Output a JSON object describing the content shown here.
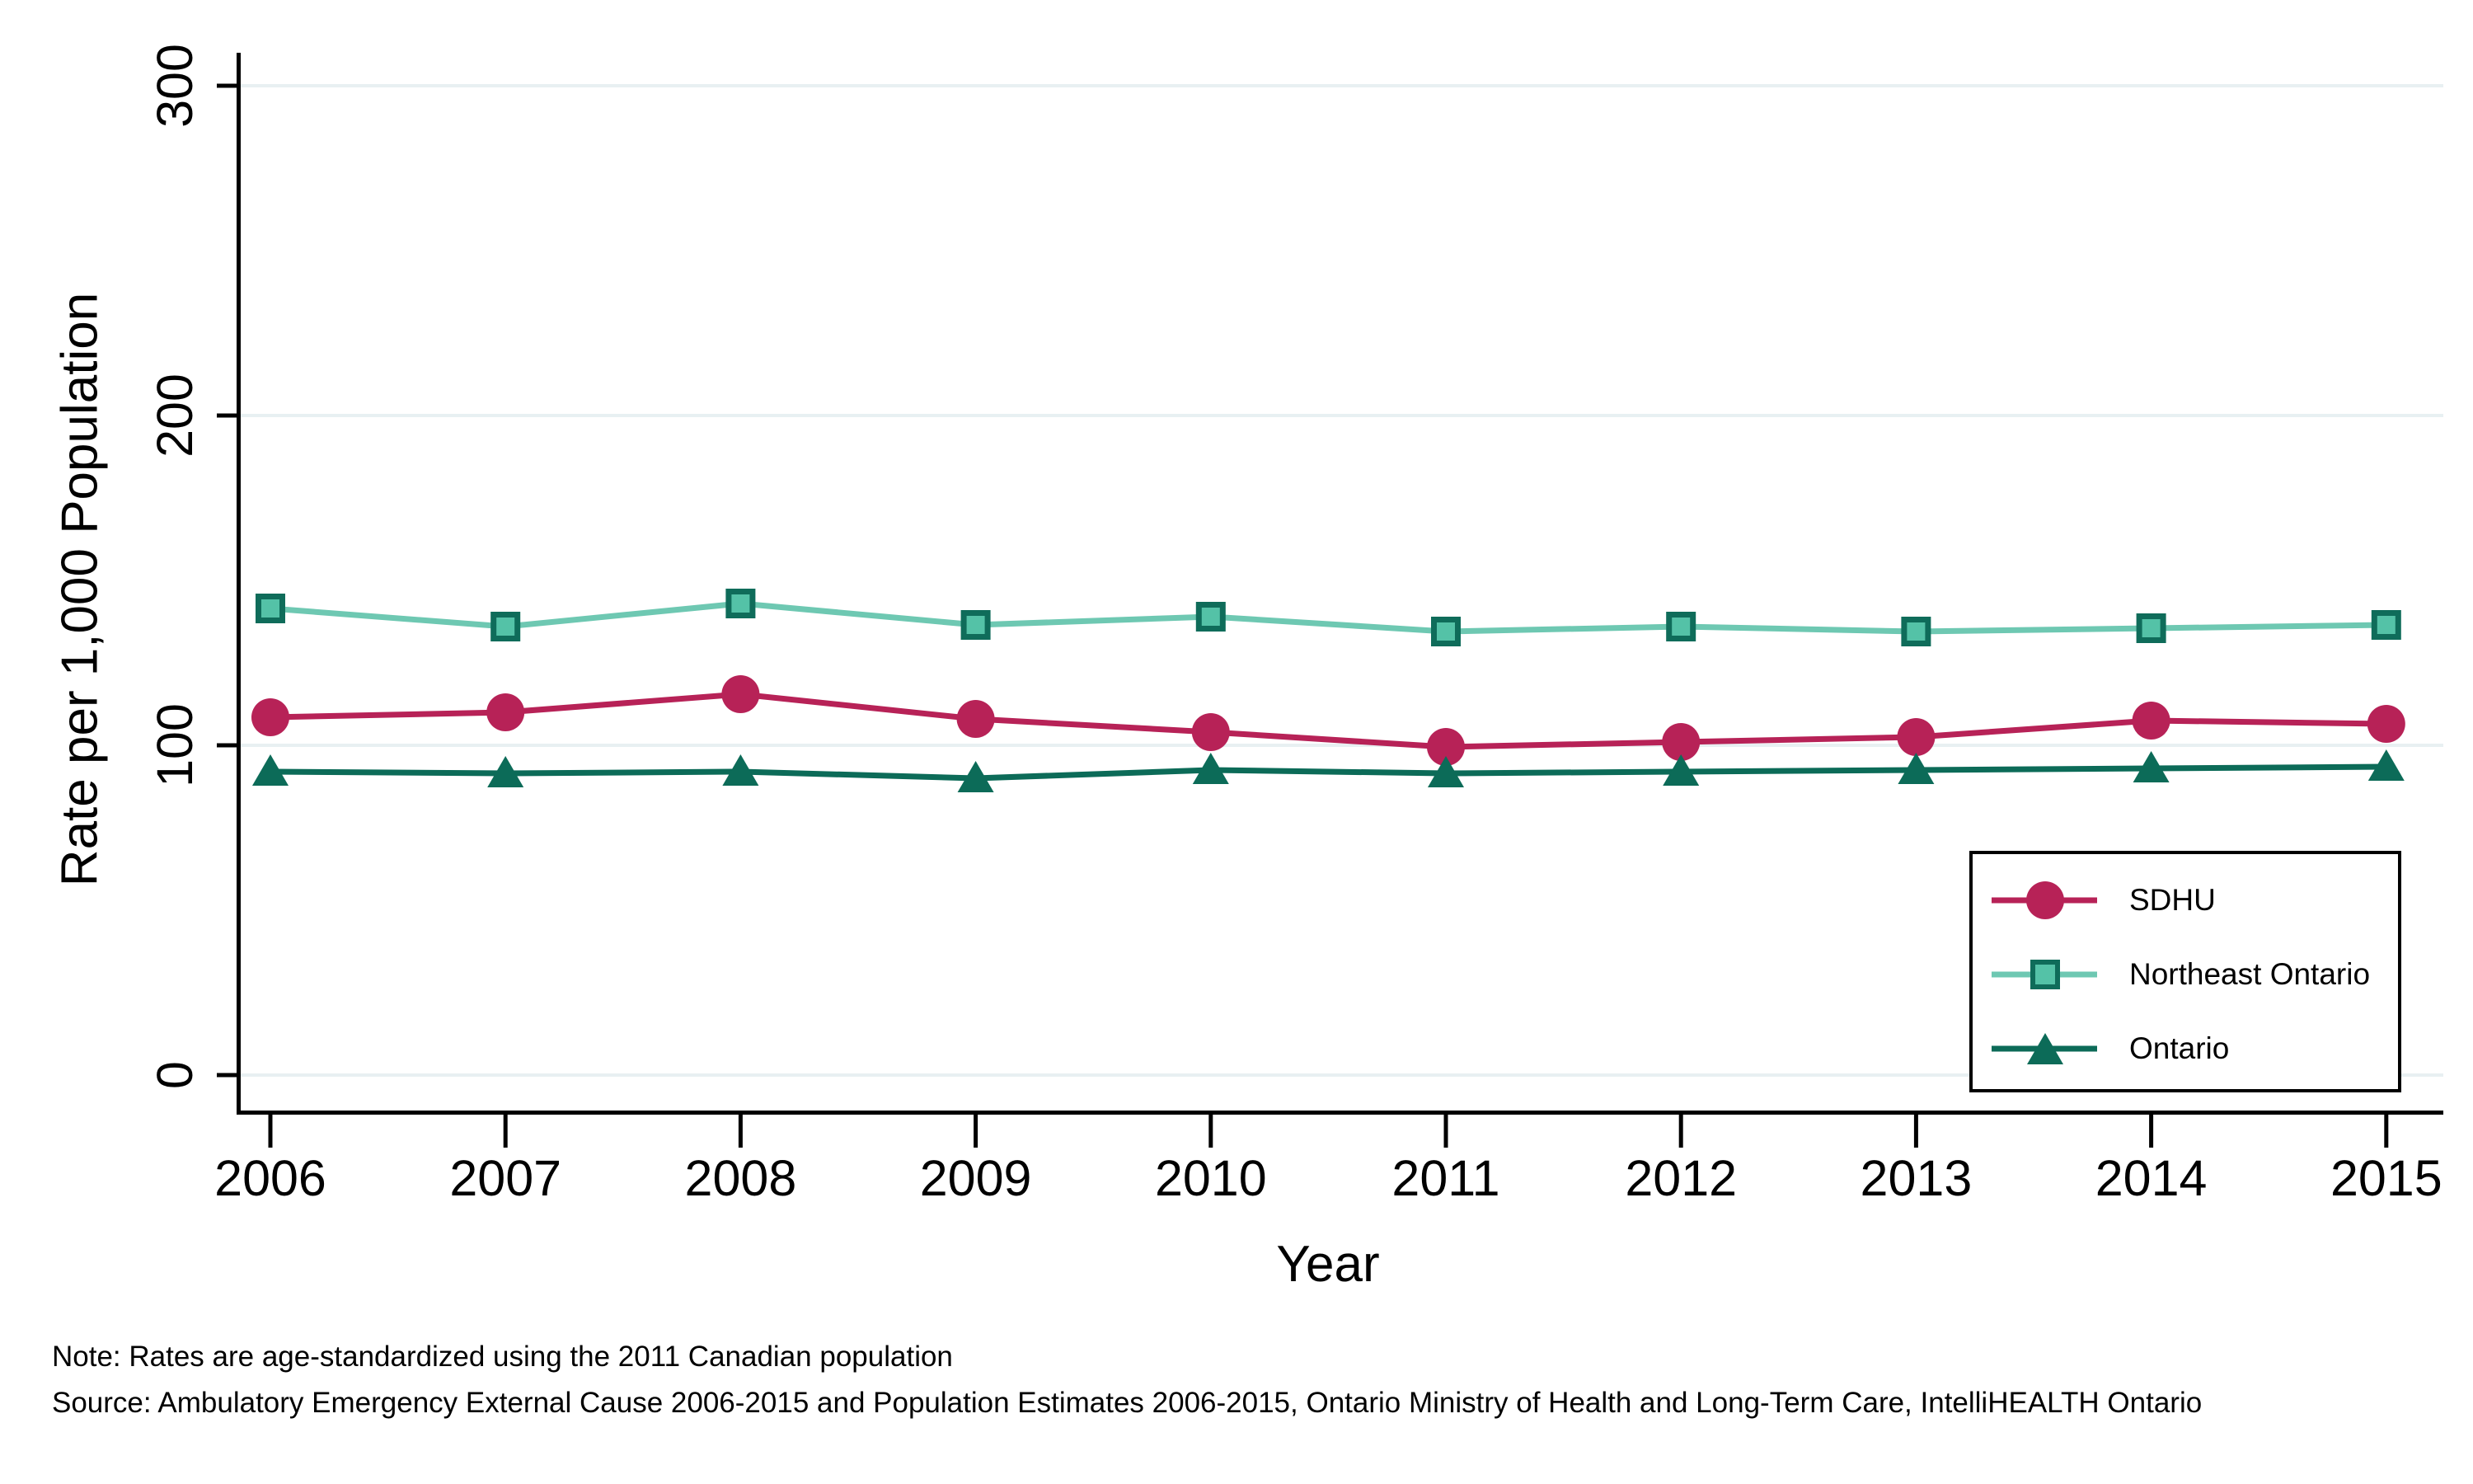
{
  "chart_data": {
    "type": "line",
    "title": "",
    "xlabel": "Year",
    "ylabel": "Rate per 1,000 Population",
    "x": [
      2006,
      2007,
      2008,
      2009,
      2010,
      2011,
      2012,
      2013,
      2014,
      2015
    ],
    "xticklabels": [
      "2006",
      "2007",
      "2008",
      "2009",
      "2010",
      "2011",
      "2012",
      "2013",
      "2014",
      "2015"
    ],
    "yticks": [
      0,
      100,
      200,
      300
    ],
    "yticklabels": [
      "0",
      "100",
      "200",
      "300"
    ],
    "ylim": [
      0,
      300
    ],
    "grid": "horizontal",
    "gridline_color": "#e8f0f2",
    "legend_position": "bottom-right-inside",
    "series": [
      {
        "name": "SDHU",
        "marker": "circle",
        "color": "#b72257",
        "line_color": "#b72257",
        "values": [
          108.5,
          110,
          115.5,
          108,
          104,
          99.5,
          101,
          102.5,
          107.5,
          106.5
        ]
      },
      {
        "name": "Northeast Ontario",
        "marker": "square",
        "color": "#54c2a7",
        "border_color": "#0f6c5a",
        "line_color": "#6ec8b2",
        "values": [
          141.5,
          136,
          143,
          136.5,
          139,
          134.5,
          136,
          134.5,
          135.5,
          136.5
        ]
      },
      {
        "name": "Ontario",
        "marker": "triangle",
        "color": "#0c6b58",
        "line_color": "#0c6b58",
        "values": [
          92,
          91.5,
          92,
          90,
          92.5,
          91.5,
          92,
          92.5,
          93,
          93.5
        ]
      }
    ],
    "note": "Note: Rates are age-standardized using the 2011 Canadian population",
    "source": "Source: Ambulatory Emergency External Cause 2006-2015 and Population Estimates 2006-2015, Ontario Ministry of Health and Long-Term Care, IntelliHEALTH Ontario"
  }
}
